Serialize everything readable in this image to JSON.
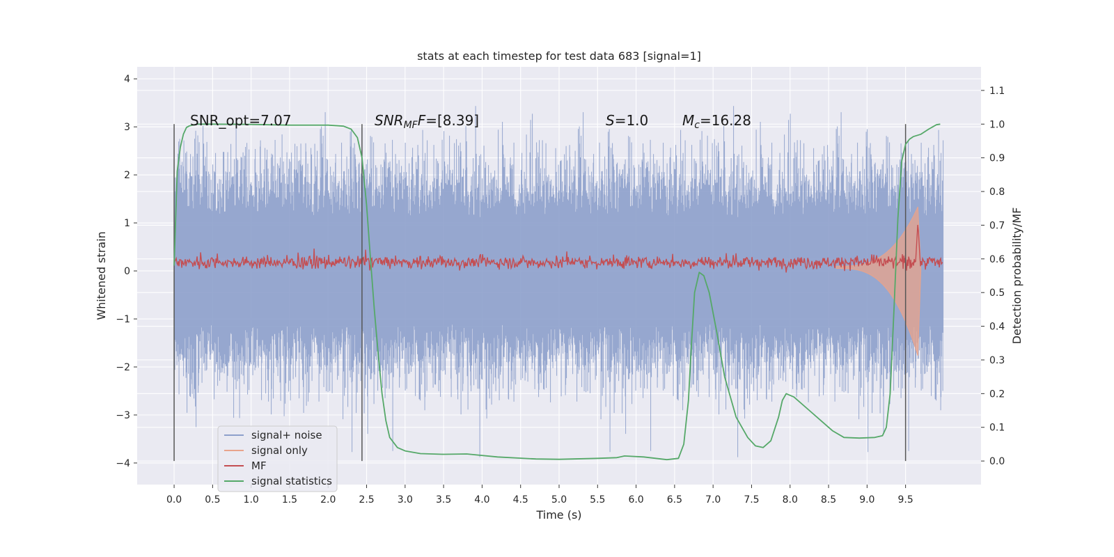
{
  "chart_data": {
    "type": "line",
    "title": "stats at each timestep for test data 683 [signal=1]",
    "xlabel": "Time (s)",
    "ylabel": "Whitened strain",
    "y2label": "Detection probability/MF",
    "xlim": [
      -0.48,
      10.48
    ],
    "ylim": [
      -4.45,
      4.25
    ],
    "y2lim": [
      -0.07,
      1.17
    ],
    "xticks": [
      "0.0",
      "0.5",
      "1.0",
      "1.5",
      "2.0",
      "2.5",
      "3.0",
      "3.5",
      "4.0",
      "4.5",
      "5.0",
      "5.5",
      "6.0",
      "6.5",
      "7.0",
      "7.5",
      "8.0",
      "8.5",
      "9.0",
      "9.5"
    ],
    "yticks": [
      "4",
      "3",
      "2",
      "1",
      "0",
      "−1",
      "−2",
      "−3",
      "−4"
    ],
    "y2ticks": [
      "1.1",
      "1.0",
      "0.9",
      "0.8",
      "0.7",
      "0.6",
      "0.5",
      "0.4",
      "0.3",
      "0.2",
      "0.1",
      "0.0"
    ],
    "grid": true,
    "legend_position": "bottom-left",
    "annotations": {
      "snr_opt": "SNR_opt=7.07",
      "snr_mf_sym": "SNR",
      "snr_mf_sub": "MF",
      "snr_mf_var": "F",
      "snr_mf_val": "=[8.39]",
      "s_sym": "S",
      "s_val": "=1.0",
      "mc_sym": "M",
      "mc_sub": "c",
      "mc_val": "=16.28"
    },
    "vertical_markers": [
      0.0,
      2.44,
      9.5
    ],
    "series": [
      {
        "name": "signal+ noise",
        "color": "#8da0cb",
        "x_range": [
          0.0,
          9.99
        ],
        "style": "noise",
        "amplitude": 1.0
      },
      {
        "name": "signal only",
        "color": "#e8a38b",
        "x_range": [
          0.0,
          9.7
        ],
        "style": "chirp",
        "peak": 1.3,
        "merger_time": 9.66
      },
      {
        "name": "MF",
        "color": "#c44e52",
        "x_range": [
          0.0,
          9.99
        ],
        "style": "mf",
        "baseline": 0.18,
        "peak_time": 9.66,
        "peak": 1.02
      },
      {
        "name": "signal statistics",
        "color": "#55a868",
        "axis": "right",
        "x": [
          0.0,
          0.04,
          0.08,
          0.12,
          0.16,
          0.2,
          0.3,
          0.5,
          1.0,
          1.5,
          2.0,
          2.2,
          2.3,
          2.38,
          2.44,
          2.5,
          2.55,
          2.6,
          2.65,
          2.7,
          2.75,
          2.8,
          2.9,
          3.0,
          3.2,
          3.5,
          3.8,
          4.2,
          4.7,
          5.0,
          5.5,
          5.75,
          5.85,
          6.1,
          6.4,
          6.55,
          6.62,
          6.68,
          6.72,
          6.76,
          6.82,
          6.88,
          6.95,
          7.05,
          7.15,
          7.3,
          7.45,
          7.55,
          7.65,
          7.75,
          7.85,
          7.9,
          7.95,
          8.05,
          8.25,
          8.4,
          8.55,
          8.7,
          8.9,
          9.1,
          9.2,
          9.25,
          9.3,
          9.35,
          9.4,
          9.45,
          9.5,
          9.55,
          9.6,
          9.7,
          9.8,
          9.9,
          9.95
        ],
        "y": [
          0.58,
          0.86,
          0.93,
          0.97,
          0.99,
          0.995,
          1.0,
          1.0,
          0.999,
          0.997,
          0.997,
          0.994,
          0.985,
          0.96,
          0.9,
          0.76,
          0.6,
          0.45,
          0.32,
          0.2,
          0.12,
          0.07,
          0.04,
          0.03,
          0.022,
          0.02,
          0.021,
          0.012,
          0.006,
          0.005,
          0.008,
          0.01,
          0.015,
          0.012,
          0.004,
          0.008,
          0.05,
          0.18,
          0.35,
          0.5,
          0.56,
          0.55,
          0.5,
          0.38,
          0.25,
          0.13,
          0.07,
          0.045,
          0.04,
          0.06,
          0.13,
          0.18,
          0.2,
          0.19,
          0.15,
          0.12,
          0.09,
          0.07,
          0.068,
          0.07,
          0.075,
          0.1,
          0.2,
          0.45,
          0.72,
          0.89,
          0.94,
          0.955,
          0.963,
          0.97,
          0.985,
          0.998,
          1.0
        ]
      }
    ]
  }
}
